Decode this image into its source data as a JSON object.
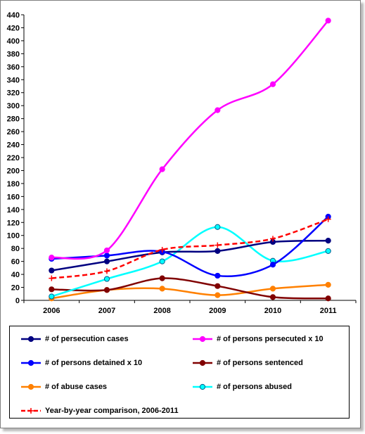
{
  "chart_data": {
    "type": "line",
    "categories": [
      "2006",
      "2007",
      "2008",
      "2009",
      "2010",
      "2011"
    ],
    "ylim": [
      0,
      440
    ],
    "yticks": [
      0,
      20,
      40,
      60,
      80,
      100,
      120,
      140,
      160,
      180,
      200,
      220,
      240,
      260,
      280,
      300,
      320,
      340,
      360,
      380,
      400,
      420,
      440
    ],
    "grid": false,
    "legend_position": "bottom",
    "series": [
      {
        "name": "# of persecution cases",
        "values": [
          46,
          60,
          74,
          76,
          90,
          92
        ],
        "color": "#000080",
        "marker": "circle",
        "dashed": false
      },
      {
        "name": "# of persons persecuted x 10",
        "values": [
          66,
          77,
          202,
          293,
          333,
          431
        ],
        "color": "#ff00ff",
        "marker": "circle",
        "dashed": false
      },
      {
        "name": "# of persons detained x 10",
        "values": [
          64,
          69,
          75,
          38,
          55,
          129
        ],
        "color": "#0000ff",
        "marker": "circle",
        "dashed": false
      },
      {
        "name": "# of persons sentenced",
        "values": [
          17,
          16,
          34,
          22,
          5,
          3
        ],
        "color": "#800000",
        "marker": "circle",
        "dashed": false
      },
      {
        "name": "# of abuse cases",
        "values": [
          3,
          16,
          18,
          8,
          18,
          24
        ],
        "color": "#ff8000",
        "marker": "circle",
        "dashed": false
      },
      {
        "name": "# of persons abused",
        "values": [
          6,
          33,
          60,
          113,
          61,
          76
        ],
        "color": "#00ffff",
        "marker": "circle-outline",
        "dashed": false
      },
      {
        "name": "Year-by-year comparison, 2006-2011",
        "values": [
          34,
          45,
          78,
          85,
          95,
          125
        ],
        "color": "#ff0000",
        "marker": "plus",
        "dashed": true
      }
    ]
  }
}
